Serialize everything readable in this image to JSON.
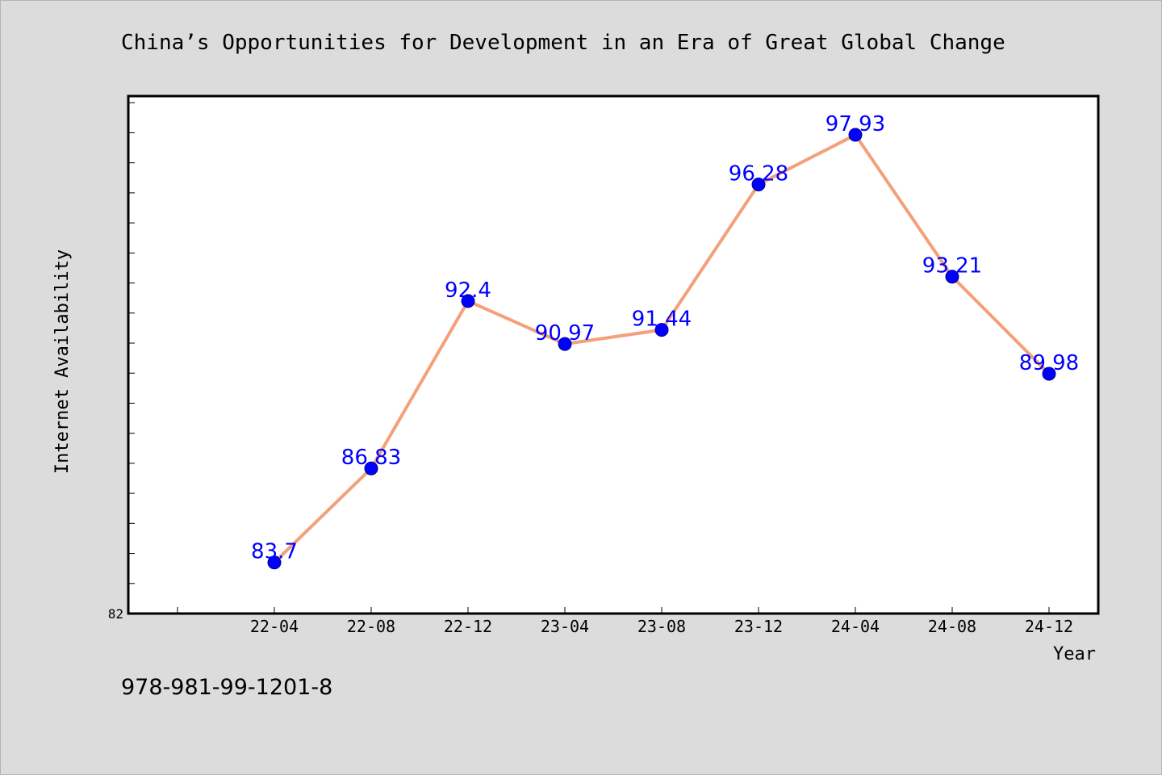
{
  "title": "China’s Opportunities for Development in an Era of Great Global Change",
  "footer": "978-981-99-1201-8",
  "chart_data": {
    "type": "line",
    "title": "China’s Opportunities for Development in an Era of Great Global Change",
    "xlabel": "Year",
    "ylabel": "Internet Availability",
    "categories": [
      "22-04",
      "22-08",
      "22-12",
      "23-04",
      "23-08",
      "23-12",
      "24-04",
      "24-08",
      "24-12"
    ],
    "series": [
      {
        "values": [
          83.7,
          86.83,
          92.4,
          90.97,
          91.44,
          96.28,
          97.93,
          93.21,
          89.98
        ]
      }
    ],
    "ylim": [
      82,
      100
    ],
    "ytick_labels": [
      "82"
    ],
    "grid": false,
    "data_labels": true,
    "colors": {
      "line": "#f4a07a",
      "marker": "#0000ff",
      "data_label": "#0000ff",
      "background": "#dcdcdc",
      "plot_area": "#ffffff"
    }
  }
}
